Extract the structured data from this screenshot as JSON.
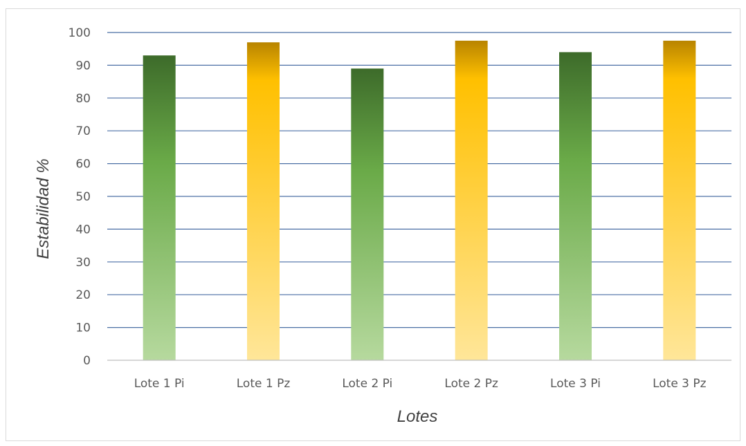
{
  "chart_data": {
    "type": "bar",
    "title": "",
    "xlabel": "Lotes",
    "ylabel": "Estabilidad %",
    "categories": [
      "Lote 1 Pi",
      "Lote 1 Pz",
      "Lote 2 Pi",
      "Lote 2 Pz",
      "Lote 3 Pi",
      "Lote 3 Pz"
    ],
    "values": [
      93,
      97,
      89,
      97.5,
      94,
      97.5
    ],
    "ylim": [
      0,
      100
    ],
    "yticks": [
      "0",
      "10",
      "20",
      "30",
      "40",
      "50",
      "60",
      "70",
      "80",
      "90",
      "100"
    ],
    "grid": true,
    "legend": "none",
    "colors": {
      "green_dark": "#3d6b2a",
      "green_mid": "#6aaa48",
      "green_light": "#b6d99e",
      "gold_dark": "#b88400",
      "gold_mid": "#ffc000",
      "gold_light": "#ffe699",
      "gridline": "#4a6fa5"
    }
  }
}
